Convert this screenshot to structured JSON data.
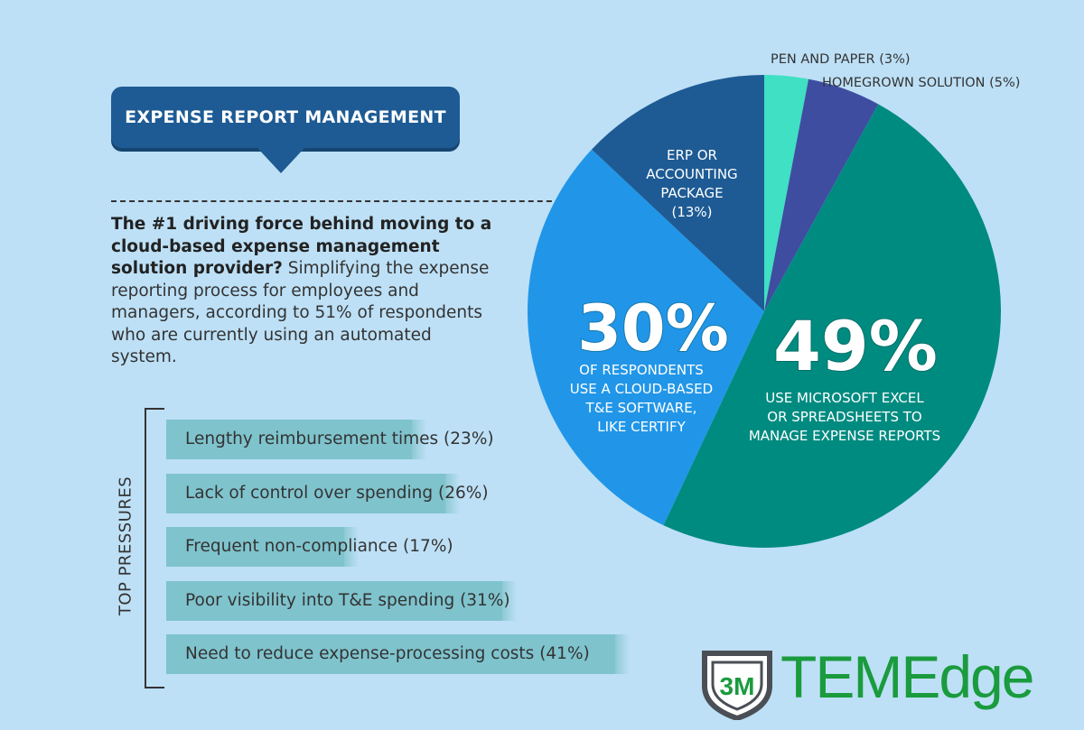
{
  "header": {
    "title": "EXPENSE REPORT MANAGEMENT"
  },
  "intro": {
    "bold": "The #1 driving force behind moving to a cloud-based expense management solution provider?",
    "rest": " Simplifying the expense reporting process for employees and managers, according to 51% of respondents who are currently using an automated system."
  },
  "pressures": {
    "label": "TOP PRESSURES"
  },
  "logo": {
    "text": "TEMEdge",
    "mark": "3M"
  },
  "colors": {
    "background": "#bde0f6",
    "excel": "#008b80",
    "cloud": "#2196e8",
    "erp": "#1e5b94",
    "pen": "#3fe0c3",
    "homegrown": "#3f4da0",
    "bar": "#7fc3cd",
    "logo": "#1a9b3e"
  },
  "chart_data": [
    {
      "type": "pie",
      "slices": [
        {
          "key": "pen",
          "value": 3,
          "label": "PEN AND PAPER (3%)"
        },
        {
          "key": "homegrown",
          "value": 5,
          "label": "HOMEGROWN SOLUTION (5%)"
        },
        {
          "key": "excel",
          "value": 49,
          "big": "49%",
          "lines": [
            "USE MICROSOFT EXCEL",
            "OR SPREADSHEETS TO",
            "MANAGE EXPENSE REPORTS"
          ]
        },
        {
          "key": "cloud",
          "value": 30,
          "big": "30%",
          "lines": [
            "OF RESPONDENTS",
            "USE A CLOUD-BASED",
            "T&E SOFTWARE,",
            "LIKE CERTIFY"
          ]
        },
        {
          "key": "erp",
          "value": 13,
          "lines": [
            "ERP OR",
            "ACCOUNTING",
            "PACKAGE",
            "(13%)"
          ]
        }
      ]
    },
    {
      "type": "bar",
      "categories": [
        "Lengthy reimbursement times (23%)",
        "Lack of control over spending (26%)",
        "Frequent non-compliance (17%)",
        "Poor visibility into T&E spending (31%)",
        "Need to reduce expense-processing costs (41%)"
      ],
      "values": [
        23,
        26,
        17,
        31,
        41
      ]
    }
  ]
}
